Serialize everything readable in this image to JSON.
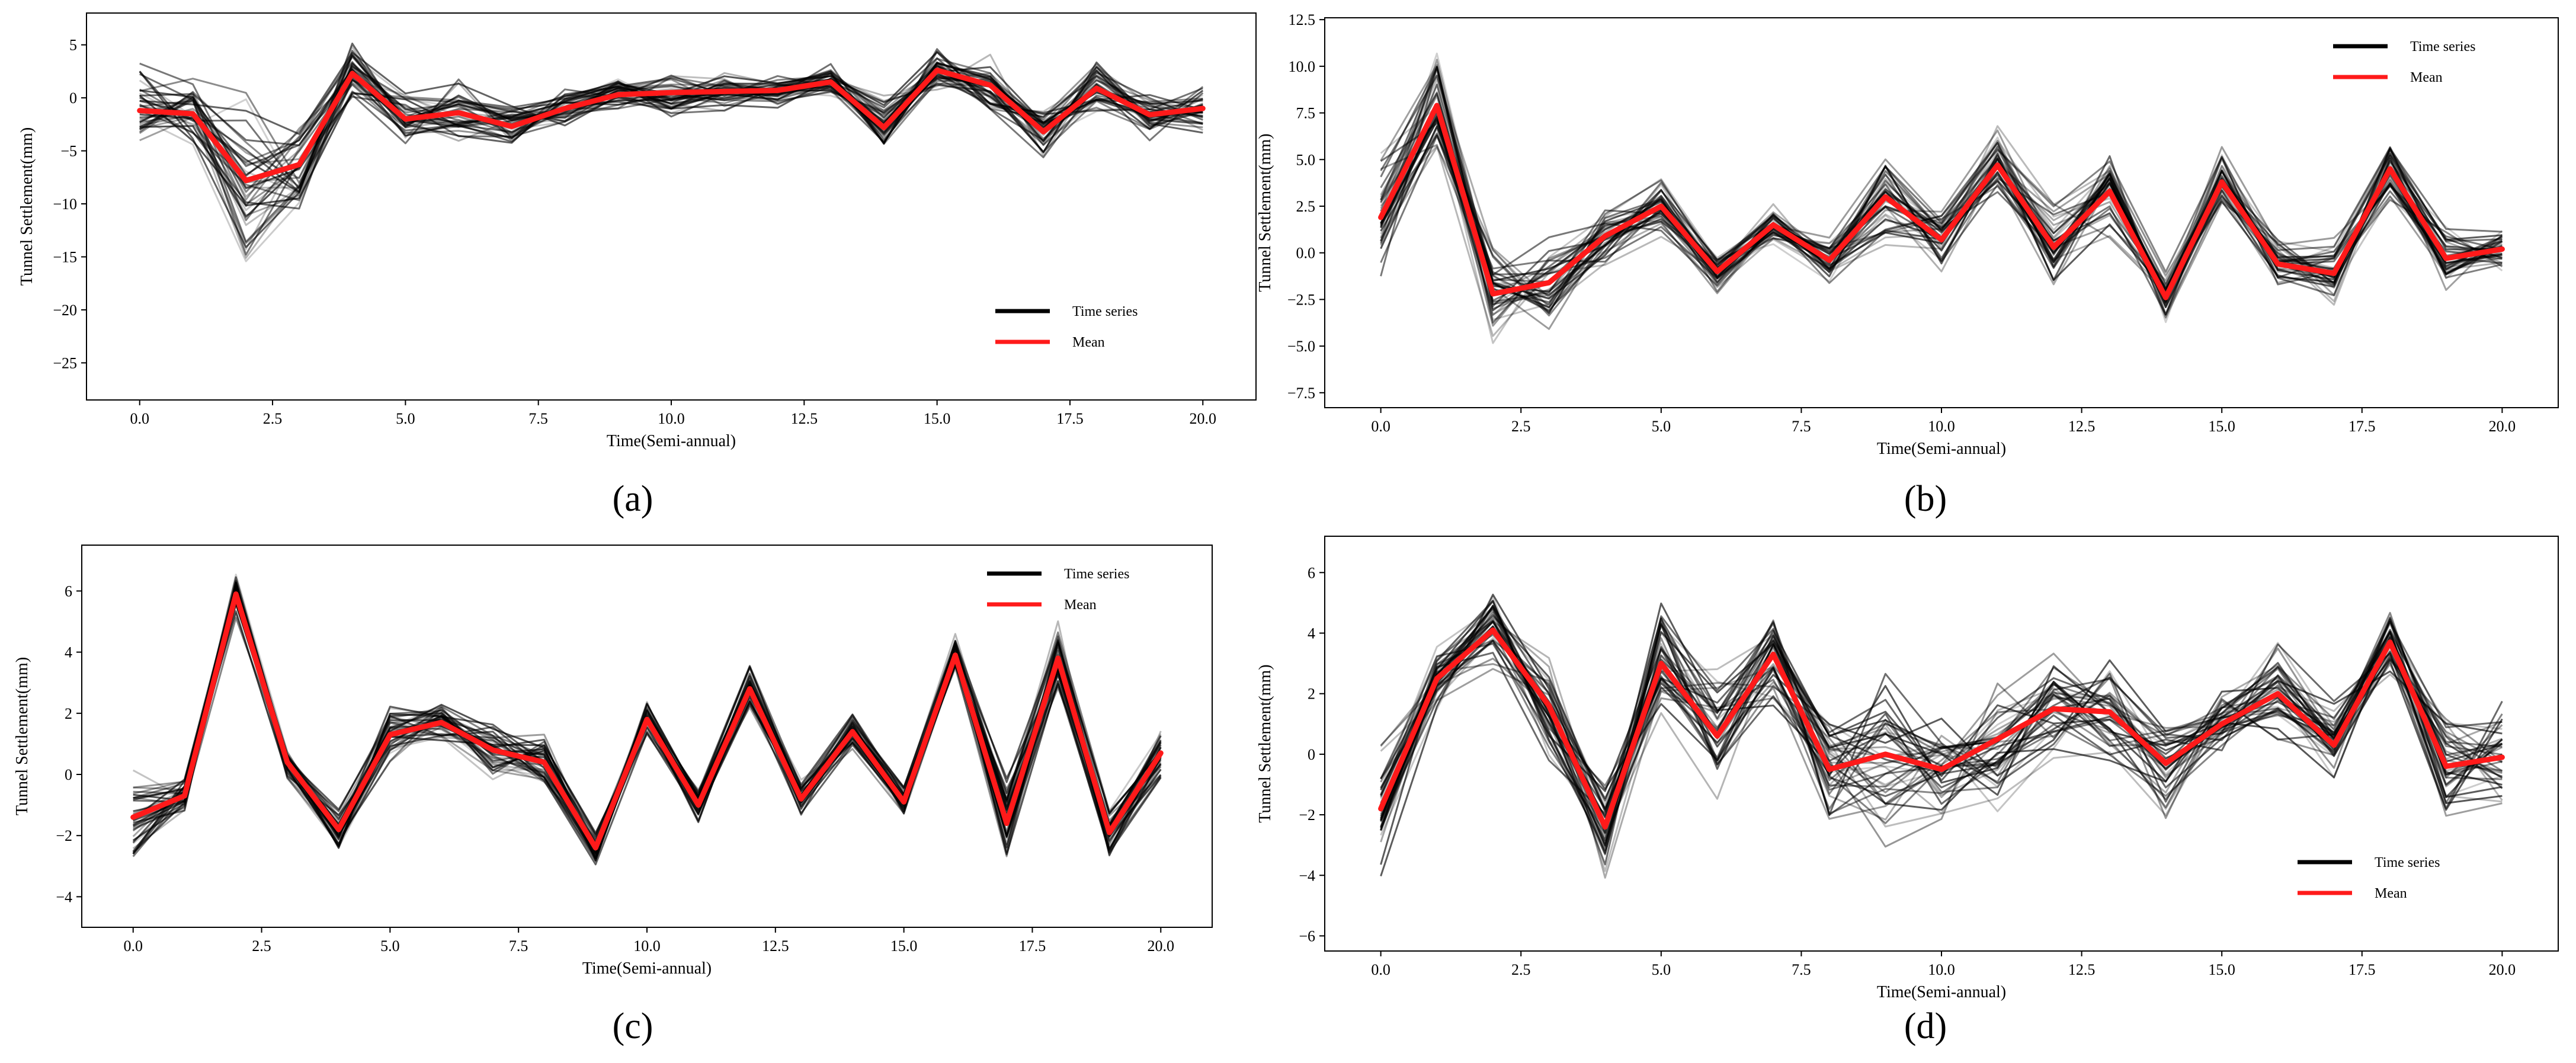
{
  "figure": {
    "panel_labels": [
      "(a)",
      "(b)",
      "(c)",
      "(d)"
    ]
  },
  "chart_data": [
    {
      "panel": "(a)",
      "type": "line",
      "xlabel": "Time(Semi-annual)",
      "ylabel": "Tunnel Settlement(mm)",
      "xlim": [
        -1.0,
        21.0
      ],
      "ylim": [
        -28.5,
        8.0
      ],
      "xticks": [
        "0.0",
        "2.5",
        "5.0",
        "7.5",
        "10.0",
        "12.5",
        "15.0",
        "17.5",
        "20.0"
      ],
      "yticks": [
        "5",
        "0",
        "−5",
        "−10",
        "−15",
        "−20",
        "−25"
      ],
      "ytick_values": [
        5,
        0,
        -5,
        -10,
        -15,
        -20,
        -25
      ],
      "legend": {
        "position": "lower-right",
        "entries": [
          "Time series",
          "Mean"
        ]
      },
      "x": [
        0,
        1,
        2,
        3,
        4,
        5,
        6,
        7,
        8,
        9,
        10,
        11,
        12,
        13,
        14,
        15,
        16,
        17,
        18,
        19,
        20
      ],
      "mean": [
        -1.2,
        -1.5,
        -7.8,
        -6.3,
        2.3,
        -2.0,
        -1.4,
        -2.7,
        -1.0,
        0.3,
        0.5,
        0.6,
        0.7,
        1.5,
        -2.8,
        2.6,
        1.2,
        -3.2,
        0.9,
        -1.6,
        -1.0
      ],
      "spread": [
        3.5,
        3.0,
        7.5,
        4.0,
        2.5,
        2.5,
        2.5,
        2.0,
        1.5,
        1.5,
        2.0,
        1.5,
        1.5,
        1.5,
        2.5,
        1.8,
        2.5,
        2.0,
        2.5,
        2.0,
        2.0
      ],
      "n_series": 40,
      "colors": {
        "series": "#000000",
        "mean": "#ff1a1a"
      }
    },
    {
      "panel": "(b)",
      "type": "line",
      "xlabel": "Time(Semi-annual)",
      "ylabel": "Tunnel Settlement(mm)",
      "xlim": [
        -1.0,
        21.0
      ],
      "ylim": [
        -8.3,
        12.6
      ],
      "xticks": [
        "0.0",
        "2.5",
        "5.0",
        "7.5",
        "10.0",
        "12.5",
        "15.0",
        "17.5",
        "20.0"
      ],
      "yticks": [
        "12.5",
        "10.0",
        "7.5",
        "5.0",
        "2.5",
        "0.0",
        "−2.5",
        "−5.0",
        "−7.5"
      ],
      "ytick_values": [
        12.5,
        10,
        7.5,
        5,
        2.5,
        0,
        -2.5,
        -5,
        -7.5
      ],
      "legend": {
        "position": "upper-right",
        "entries": [
          "Time series",
          "Mean"
        ]
      },
      "x": [
        0,
        1,
        2,
        3,
        4,
        5,
        6,
        7,
        8,
        9,
        10,
        11,
        12,
        13,
        14,
        15,
        16,
        17,
        18,
        19,
        20
      ],
      "mean": [
        1.9,
        7.9,
        -2.2,
        -1.6,
        0.9,
        2.5,
        -1.0,
        1.5,
        -0.4,
        3.0,
        0.7,
        4.7,
        0.3,
        3.3,
        -2.4,
        3.8,
        -0.6,
        -1.1,
        4.5,
        -0.3,
        0.2
      ],
      "spread": [
        3.5,
        2.5,
        2.5,
        2.0,
        1.5,
        1.5,
        1.0,
        1.0,
        1.0,
        2.5,
        1.5,
        1.8,
        2.0,
        2.2,
        1.2,
        1.5,
        1.2,
        1.5,
        1.5,
        1.5,
        1.0
      ],
      "n_series": 40,
      "colors": {
        "series": "#000000",
        "mean": "#ff1a1a"
      }
    },
    {
      "panel": "(c)",
      "type": "line",
      "xlabel": "Time(Semi-annual)",
      "ylabel": "Tunnel Settlement(mm)",
      "xlim": [
        -1.0,
        21.0
      ],
      "ylim": [
        -5.0,
        7.5
      ],
      "xticks": [
        "0.0",
        "2.5",
        "5.0",
        "7.5",
        "10.0",
        "12.5",
        "15.0",
        "17.5",
        "20.0"
      ],
      "yticks": [
        "6",
        "4",
        "2",
        "0",
        "−2",
        "−4"
      ],
      "ytick_values": [
        6,
        4,
        2,
        0,
        -2,
        -4
      ],
      "legend": {
        "position": "upper-right",
        "entries": [
          "Time series",
          "Mean"
        ]
      },
      "x": [
        0,
        1,
        2,
        3,
        4,
        5,
        6,
        7,
        8,
        9,
        10,
        11,
        12,
        13,
        14,
        15,
        16,
        17,
        18,
        19,
        20
      ],
      "mean": [
        -1.4,
        -0.7,
        5.9,
        0.4,
        -1.8,
        1.3,
        1.7,
        0.8,
        0.4,
        -2.4,
        1.8,
        -1.0,
        2.8,
        -0.8,
        1.4,
        -0.9,
        3.9,
        -1.6,
        3.8,
        -1.9,
        0.7
      ],
      "spread": [
        1.2,
        0.5,
        0.8,
        0.5,
        0.6,
        1.0,
        0.6,
        0.8,
        0.8,
        0.5,
        0.5,
        0.5,
        0.7,
        0.5,
        0.5,
        0.5,
        0.6,
        1.2,
        1.0,
        0.7,
        0.8
      ],
      "n_series": 40,
      "colors": {
        "series": "#000000",
        "mean": "#ff1a1a"
      }
    },
    {
      "panel": "(d)",
      "type": "line",
      "xlabel": "Time(Semi-annual)",
      "ylabel": "Tunnel Settlement(mm)",
      "xlim": [
        -1.0,
        21.0
      ],
      "ylim": [
        -6.5,
        7.2
      ],
      "xticks": [
        "0.0",
        "2.5",
        "5.0",
        "7.5",
        "10.0",
        "12.5",
        "15.0",
        "17.5",
        "20.0"
      ],
      "yticks": [
        "6",
        "4",
        "2",
        "0",
        "−2",
        "−4",
        "−6"
      ],
      "ytick_values": [
        6,
        4,
        2,
        0,
        -2,
        -4,
        -6
      ],
      "legend": {
        "position": "lower-right",
        "entries": [
          "Time series",
          "Mean"
        ]
      },
      "x": [
        0,
        1,
        2,
        3,
        4,
        5,
        6,
        7,
        8,
        9,
        10,
        11,
        12,
        13,
        14,
        15,
        16,
        17,
        18,
        19,
        20
      ],
      "mean": [
        -1.8,
        2.5,
        4.1,
        1.6,
        -2.4,
        3.0,
        0.6,
        3.3,
        -0.5,
        0.0,
        -0.5,
        0.5,
        1.5,
        1.4,
        -0.3,
        1.0,
        2.0,
        0.3,
        3.7,
        -0.4,
        -0.1
      ],
      "spread": [
        1.8,
        1.0,
        1.2,
        1.5,
        1.5,
        1.8,
        1.8,
        1.5,
        1.8,
        2.5,
        1.5,
        2.0,
        1.5,
        1.5,
        1.5,
        1.0,
        1.5,
        1.2,
        1.0,
        1.5,
        1.5
      ],
      "n_series": 40,
      "colors": {
        "series": "#000000",
        "mean": "#ff1a1a"
      }
    }
  ]
}
